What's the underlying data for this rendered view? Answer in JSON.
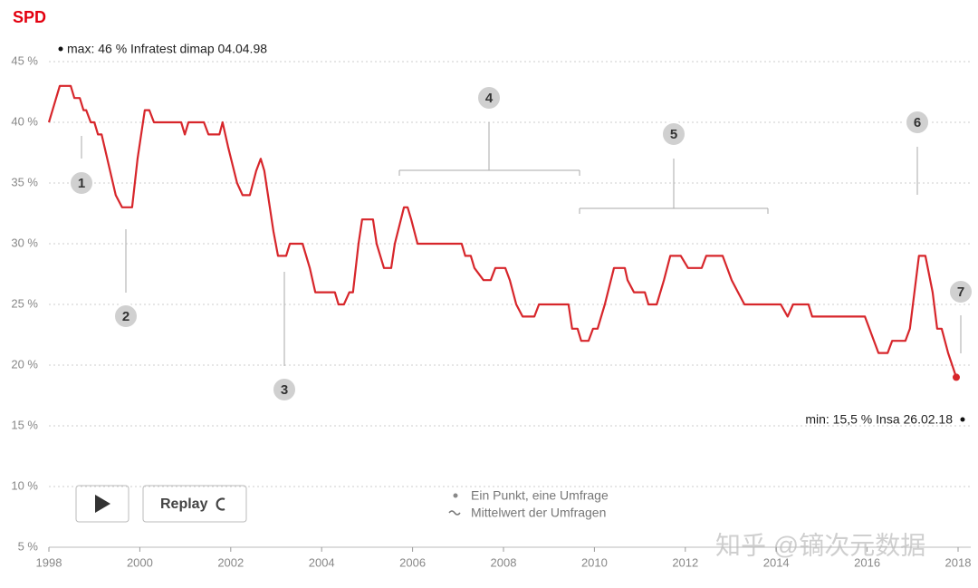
{
  "logo": "SPD",
  "chart_data": {
    "type": "line",
    "x": [
      1998.0,
      1998.24,
      1998.48,
      1998.56,
      1998.68,
      1998.76,
      1998.82,
      1998.92,
      1999.0,
      1999.08,
      1999.16,
      1999.47,
      1999.61,
      1999.83,
      1999.95,
      2000.11,
      2000.21,
      2000.31,
      2000.91,
      2000.99,
      2001.07,
      2001.41,
      2001.51,
      2001.75,
      2001.82,
      2001.94,
      2002.14,
      2002.26,
      2002.42,
      2002.56,
      2002.66,
      2002.74,
      2002.94,
      2003.04,
      2003.22,
      2003.3,
      2003.58,
      2003.74,
      2003.86,
      2004.29,
      2004.37,
      2004.49,
      2004.61,
      2004.69,
      2004.81,
      2004.89,
      2005.13,
      2005.21,
      2005.37,
      2005.53,
      2005.61,
      2005.81,
      2005.89,
      2005.97,
      2006.11,
      2007.08,
      2007.16,
      2007.28,
      2007.36,
      2007.56,
      2007.72,
      2007.82,
      2008.04,
      2008.14,
      2008.28,
      2008.42,
      2008.68,
      2008.78,
      2009.43,
      2009.51,
      2009.63,
      2009.71,
      2009.87,
      2009.97,
      2010.07,
      2010.23,
      2010.43,
      2010.67,
      2010.73,
      2010.87,
      2011.11,
      2011.19,
      2011.37,
      2011.53,
      2011.67,
      2011.9,
      2012.06,
      2012.36,
      2012.46,
      2012.82,
      2012.92,
      2013.02,
      2013.16,
      2013.3,
      2014.1,
      2014.25,
      2014.37,
      2014.71,
      2014.79,
      2015.95,
      2016.05,
      2016.15,
      2016.25,
      2016.45,
      2016.55,
      2016.84,
      2016.94,
      2017.14,
      2017.28,
      2017.44,
      2017.54,
      2017.64,
      2017.78,
      2017.96
    ],
    "series": [
      {
        "name": "Mittelwert der Umfragen",
        "color": "#d7262b",
        "values": [
          40,
          43,
          43,
          42,
          42,
          41,
          41,
          40,
          40,
          39,
          39,
          34,
          33,
          33,
          37,
          41,
          41,
          40,
          40,
          39,
          40,
          40,
          39,
          39,
          40,
          38,
          35,
          34,
          34,
          36,
          37,
          36,
          31,
          29,
          29,
          30,
          30,
          28,
          26,
          26,
          25,
          25,
          26,
          26,
          30,
          32,
          32,
          30,
          28,
          28,
          30,
          33,
          33,
          32,
          30,
          30,
          29,
          29,
          28,
          27,
          27,
          28,
          28,
          27,
          25,
          24,
          24,
          25,
          25,
          23,
          23,
          22,
          22,
          23,
          23,
          25,
          28,
          28,
          27,
          26,
          26,
          25,
          25,
          27,
          29,
          29,
          28,
          28,
          29,
          29,
          28,
          27,
          26,
          25,
          25,
          24,
          25,
          25,
          24,
          24,
          23,
          22,
          21,
          21,
          22,
          22,
          23,
          29,
          29,
          26,
          23,
          23,
          21,
          19
        ]
      }
    ],
    "points_label": "Ein Punkt, eine Umfrage",
    "xlim": [
      1998,
      2018
    ],
    "xticks": [
      1998,
      2000,
      2002,
      2004,
      2006,
      2008,
      2010,
      2012,
      2014,
      2016,
      2018
    ],
    "ylim": [
      5,
      45
    ],
    "yticks": [
      {
        "value": 5,
        "label": "5 %"
      },
      {
        "value": 10,
        "label": "10 %"
      },
      {
        "value": 15,
        "label": "15 %"
      },
      {
        "value": 20,
        "label": "20 %"
      },
      {
        "value": 25,
        "label": "25 %"
      },
      {
        "value": 30,
        "label": "30 %"
      },
      {
        "value": 35,
        "label": "35 %"
      },
      {
        "value": 40,
        "label": "40 %"
      },
      {
        "value": 45,
        "label": "45 %"
      }
    ],
    "grid": true,
    "max_label": "max: 46 % Infratest dimap 04.04.98",
    "min_label": "min: 15,5 % Insa 26.02.18",
    "events": [
      "1",
      "2",
      "3",
      "4",
      "5",
      "6",
      "7"
    ]
  },
  "controls": {
    "replay": "Replay"
  },
  "watermark": "知乎 @镝次元数据"
}
